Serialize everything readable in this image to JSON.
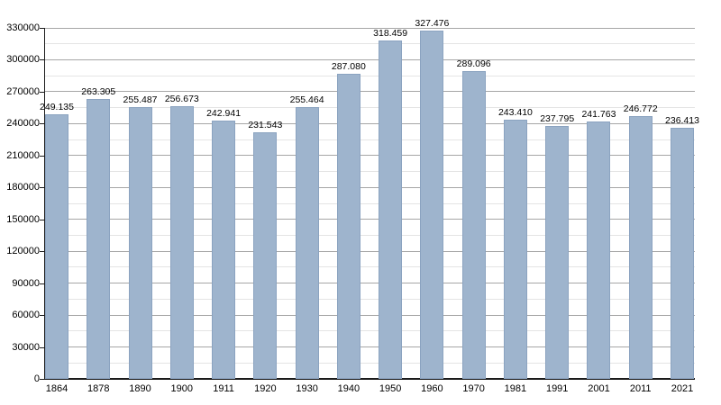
{
  "chart_data": {
    "type": "bar",
    "title": "",
    "xlabel": "",
    "ylabel": "",
    "categories": [
      "1864",
      "1878",
      "1890",
      "1900",
      "1911",
      "1920",
      "1930",
      "1940",
      "1950",
      "1960",
      "1970",
      "1981",
      "1991",
      "2001",
      "2011",
      "2021"
    ],
    "values": [
      249135,
      263305,
      255487,
      256673,
      242941,
      231543,
      255464,
      287080,
      318459,
      327476,
      289096,
      243410,
      237795,
      241763,
      246772,
      236413
    ],
    "value_labels": [
      "249.135",
      "263.305",
      "255.487",
      "256.673",
      "242.941",
      "231.543",
      "255.464",
      "287.080",
      "318.459",
      "327.476",
      "289.096",
      "243.410",
      "237.795",
      "241.763",
      "246.772",
      "236.413"
    ],
    "ylim": [
      0,
      330000
    ],
    "y_major_step": 30000,
    "y_minor_step": 15000,
    "y_tick_labels": [
      "0",
      "30000",
      "60000",
      "90000",
      "120000",
      "150000",
      "180000",
      "210000",
      "240000",
      "270000",
      "300000",
      "330000"
    ],
    "grid": true,
    "legend": "none",
    "colors": {
      "bar_fill": "#9eb4cd",
      "bar_border": "#8ba3c0",
      "grid_major": "#a6a6a6",
      "grid_minor": "#e4e4e4",
      "axis": "#1b1b1b",
      "text": "#000000",
      "background": "#ffffff"
    }
  }
}
